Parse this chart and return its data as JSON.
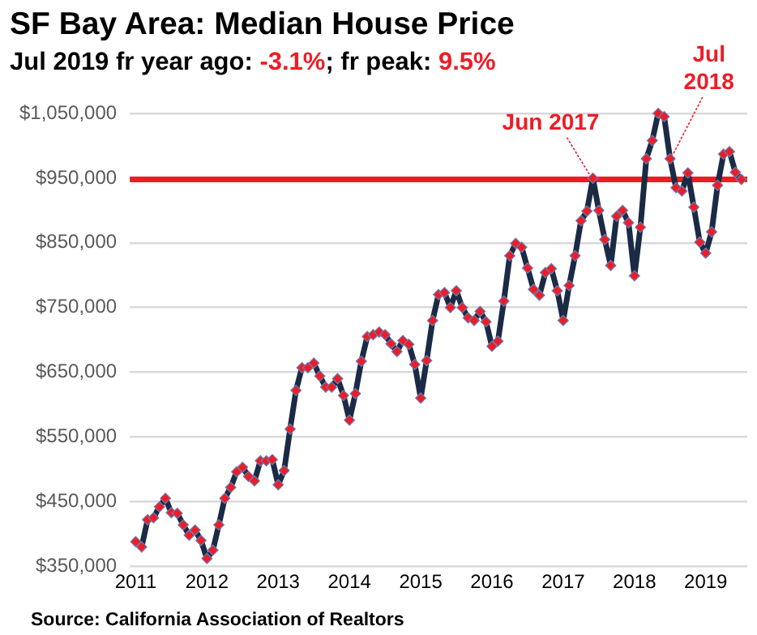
{
  "chart_data": {
    "type": "line",
    "title": "SF Bay Area: Median House Price",
    "subtitle": "Jul 2019 fr year ago: -3.1%; fr peak: 9.5%",
    "x": [
      "2011-01",
      "2011-02",
      "2011-03",
      "2011-04",
      "2011-05",
      "2011-06",
      "2011-07",
      "2011-08",
      "2011-09",
      "2011-10",
      "2011-11",
      "2011-12",
      "2012-01",
      "2012-02",
      "2012-03",
      "2012-04",
      "2012-05",
      "2012-06",
      "2012-07",
      "2012-08",
      "2012-09",
      "2012-10",
      "2012-11",
      "2012-12",
      "2013-01",
      "2013-02",
      "2013-03",
      "2013-04",
      "2013-05",
      "2013-06",
      "2013-07",
      "2013-08",
      "2013-09",
      "2013-10",
      "2013-11",
      "2013-12",
      "2014-01",
      "2014-02",
      "2014-03",
      "2014-04",
      "2014-05",
      "2014-06",
      "2014-07",
      "2014-08",
      "2014-09",
      "2014-10",
      "2014-11",
      "2014-12",
      "2015-01",
      "2015-02",
      "2015-03",
      "2015-04",
      "2015-05",
      "2015-06",
      "2015-07",
      "2015-08",
      "2015-09",
      "2015-10",
      "2015-11",
      "2015-12",
      "2016-01",
      "2016-02",
      "2016-03",
      "2016-04",
      "2016-05",
      "2016-06",
      "2016-07",
      "2016-08",
      "2016-09",
      "2016-10",
      "2016-11",
      "2016-12",
      "2017-01",
      "2017-02",
      "2017-03",
      "2017-04",
      "2017-05",
      "2017-06",
      "2017-07",
      "2017-08",
      "2017-09",
      "2017-10",
      "2017-11",
      "2017-12",
      "2018-01",
      "2018-02",
      "2018-03",
      "2018-04",
      "2018-05",
      "2018-06",
      "2018-07",
      "2018-08",
      "2018-09",
      "2018-10",
      "2018-11",
      "2018-12",
      "2019-01",
      "2019-02",
      "2019-03",
      "2019-04",
      "2019-05",
      "2019-06",
      "2019-07"
    ],
    "series": [
      {
        "color": "#1b2a45",
        "values": [
          388000,
          380000,
          422000,
          425000,
          442000,
          455000,
          433000,
          432000,
          414000,
          398000,
          406000,
          390000,
          362000,
          375000,
          414000,
          455000,
          472000,
          496000,
          503000,
          489000,
          482000,
          513000,
          513000,
          515000,
          476000,
          498000,
          562000,
          622000,
          657000,
          657000,
          664000,
          644000,
          627000,
          627000,
          640000,
          614000,
          576000,
          617000,
          667000,
          705000,
          708000,
          712000,
          708000,
          694000,
          682000,
          699000,
          693000,
          662000,
          610000,
          668000,
          730000,
          770000,
          773000,
          750000,
          776000,
          750000,
          734000,
          730000,
          744000,
          728000,
          690000,
          698000,
          760000,
          830000,
          849000,
          843000,
          811000,
          778000,
          769000,
          804000,
          810000,
          776000,
          730000,
          784000,
          830000,
          884000,
          899000,
          950000,
          900000,
          855000,
          815000,
          891000,
          900000,
          881000,
          799000,
          874000,
          980000,
          1008000,
          1050000,
          1045000,
          980000,
          935000,
          930000,
          958000,
          905000,
          851000,
          834000,
          867000,
          939000,
          987000,
          991000,
          959000,
          948000
        ]
      }
    ],
    "marker": "diamond",
    "line_style": "solid",
    "grid": "y",
    "legend": false,
    "xlim": [
      "2010-12",
      "2019-08"
    ],
    "xticks": [
      {
        "value": "2011-01",
        "label": "2011"
      },
      {
        "value": "2012-01",
        "label": "2012"
      },
      {
        "value": "2013-01",
        "label": "2013"
      },
      {
        "value": "2014-01",
        "label": "2014"
      },
      {
        "value": "2015-01",
        "label": "2015"
      },
      {
        "value": "2016-01",
        "label": "2016"
      },
      {
        "value": "2017-01",
        "label": "2017"
      },
      {
        "value": "2018-01",
        "label": "2018"
      },
      {
        "value": "2019-01",
        "label": "2019"
      }
    ],
    "ylim": [
      350000,
      1050000
    ],
    "yticks": [
      {
        "value": 350000,
        "label": "$350,000"
      },
      {
        "value": 450000,
        "label": "$450,000"
      },
      {
        "value": 550000,
        "label": "$550,000"
      },
      {
        "value": 650000,
        "label": "$650,000"
      },
      {
        "value": 750000,
        "label": "$750,000"
      },
      {
        "value": 850000,
        "label": "$850,000"
      },
      {
        "value": 950000,
        "label": "$950,000"
      },
      {
        "value": 1050000,
        "label": "$1,050,000"
      }
    ],
    "ref_lines": [
      {
        "axis": "y",
        "value": 948000,
        "color": "#ee1c25"
      }
    ],
    "annotations": [
      {
        "text": "Jun 2017",
        "x": "2017-06",
        "y": 950000
      },
      {
        "text": "Jul 2018",
        "x": "2018-07",
        "y": 980000
      },
      "Source: California Association of Realtors"
    ]
  }
}
